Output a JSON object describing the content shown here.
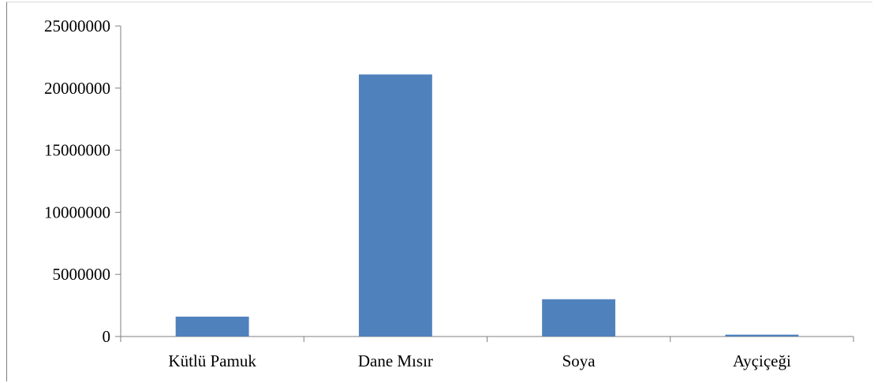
{
  "chart_data": {
    "type": "bar",
    "title": "",
    "xlabel": "",
    "ylabel": "",
    "categories": [
      "Kütlü Pamuk",
      "Dane Mısır",
      "Soya",
      "Ayçiçeği"
    ],
    "values": [
      1600000,
      21100000,
      3000000,
      150000
    ],
    "ylim": [
      0,
      25000000
    ],
    "yticks": [
      "0",
      "5000000",
      "10000000",
      "15000000",
      "20000000",
      "25000000"
    ],
    "grid": false,
    "legend": "none",
    "bar_color": "#4f81bd",
    "axis_color": "#7f7f7f"
  }
}
